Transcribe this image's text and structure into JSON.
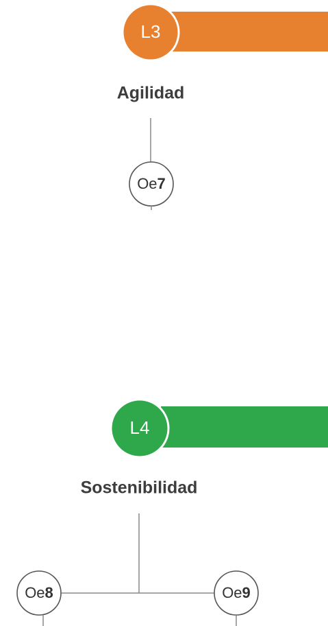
{
  "sections": [
    {
      "level": "L3",
      "title": "Agilidad",
      "nodes": [
        {
          "prefix": "Oe",
          "number": "7"
        }
      ]
    },
    {
      "level": "L4",
      "title": "Sostenibilidad",
      "nodes": [
        {
          "prefix": "Oe",
          "number": "8"
        },
        {
          "prefix": "Oe",
          "number": "9"
        }
      ]
    }
  ]
}
